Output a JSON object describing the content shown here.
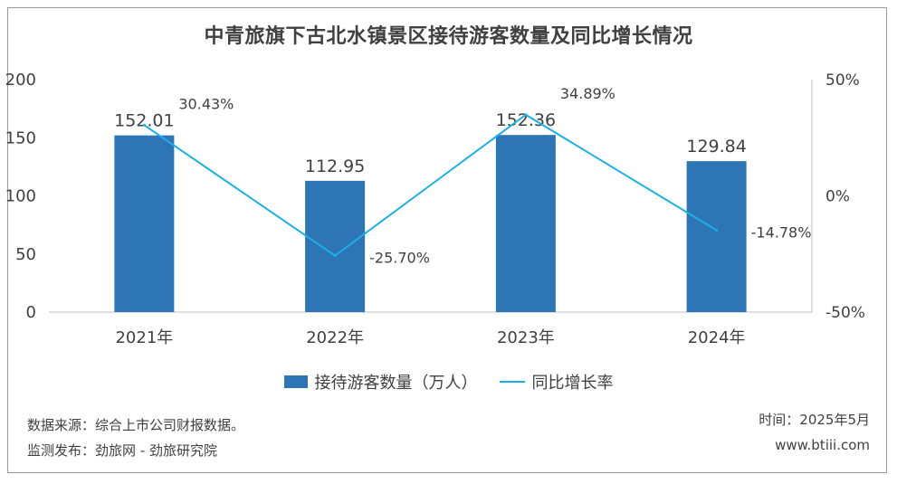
{
  "chart_data": {
    "type": "bar",
    "title": "中青旅旗下古北水镇景区接待游客数量及同比增长情况",
    "categories": [
      "2021年",
      "2022年",
      "2023年",
      "2024年"
    ],
    "series": [
      {
        "name": "接待游客数量（万人）",
        "type": "bar",
        "axis": "left",
        "values": [
          152.01,
          112.95,
          152.36,
          129.84
        ],
        "labels": [
          "152.01",
          "112.95",
          "152.36",
          "129.84"
        ],
        "color": "#2e75b6"
      },
      {
        "name": "同比增长率",
        "type": "line",
        "axis": "right",
        "values": [
          30.43,
          -25.7,
          34.89,
          -14.78
        ],
        "labels": [
          "30.43%",
          "-25.70%",
          "34.89%",
          "-14.78%"
        ],
        "color": "#1ab0e8"
      }
    ],
    "y_left": {
      "ylim": [
        0,
        200
      ],
      "ticks": [
        0,
        50,
        100,
        150,
        200
      ],
      "tick_labels": [
        "0",
        "50",
        "100",
        "150",
        "200"
      ]
    },
    "y_right": {
      "ylim": [
        -50,
        50
      ],
      "ticks": [
        -50,
        0,
        50
      ],
      "tick_labels": [
        "-50%",
        "0%",
        "50%"
      ]
    },
    "grid": false,
    "legend_position": "bottom"
  },
  "footer": {
    "source": "数据来源：综合上市公司财报数据。",
    "compiler": "监测发布：劲旅网 - 劲旅研究院",
    "time": "时间：2025年5月",
    "website": "www.btiii.com"
  }
}
